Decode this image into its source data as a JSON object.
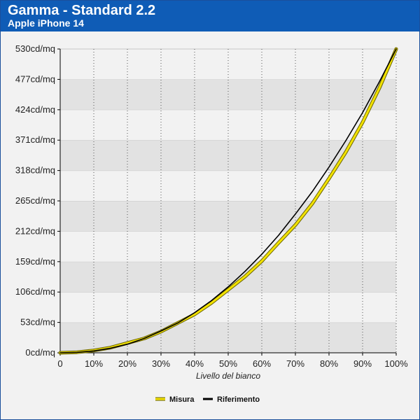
{
  "header": {
    "title": "Gamma - Standard 2.2",
    "subtitle": "Apple iPhone 14"
  },
  "colors": {
    "header_bg": "#0f5cb6",
    "measure": "#f2e200",
    "reference": "#000000",
    "band_dark": "#e2e2e2",
    "band_light": "#f2f2f2"
  },
  "chart_data": {
    "type": "line",
    "xlabel": "Livello del bianco",
    "ylabel": "",
    "x_ticks": [
      "0",
      "10%",
      "20%",
      "30%",
      "40%",
      "50%",
      "60%",
      "70%",
      "80%",
      "90%",
      "100%"
    ],
    "y_ticks": [
      "0cd/mq",
      "53cd/mq",
      "106cd/mq",
      "159cd/mq",
      "212cd/mq",
      "265cd/mq",
      "318cd/mq",
      "371cd/mq",
      "424cd/mq",
      "477cd/mq",
      "530cd/mq"
    ],
    "xlim": [
      0,
      100
    ],
    "ylim": [
      0,
      530
    ],
    "grid": "vertical dotted lines, alternating horizontal bands",
    "legend_position": "bottom-center",
    "x": [
      0,
      5,
      10,
      15,
      20,
      25,
      30,
      35,
      40,
      45,
      50,
      55,
      60,
      65,
      70,
      75,
      80,
      85,
      90,
      95,
      100
    ],
    "series": [
      {
        "name": "Misura",
        "values": [
          0,
          1,
          4,
          9,
          17,
          25,
          37,
          52,
          67,
          87,
          110,
          133,
          160,
          192,
          223,
          260,
          304,
          350,
          402,
          462,
          530
        ]
      },
      {
        "name": "Riferimento",
        "values": [
          0,
          0.7,
          3.3,
          8,
          15,
          25,
          38,
          52,
          70,
          91,
          115,
          142,
          172,
          205,
          242,
          281,
          324,
          370,
          419,
          473,
          530
        ]
      }
    ]
  }
}
